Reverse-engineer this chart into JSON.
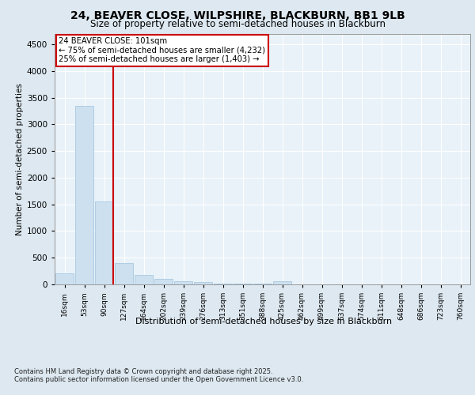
{
  "title_line1": "24, BEAVER CLOSE, WILPSHIRE, BLACKBURN, BB1 9LB",
  "title_line2": "Size of property relative to semi-detached houses in Blackburn",
  "xlabel": "Distribution of semi-detached houses by size in Blackburn",
  "ylabel": "Number of semi-detached properties",
  "categories": [
    "16sqm",
    "53sqm",
    "90sqm",
    "127sqm",
    "164sqm",
    "202sqm",
    "239sqm",
    "276sqm",
    "313sqm",
    "351sqm",
    "388sqm",
    "425sqm",
    "462sqm",
    "499sqm",
    "537sqm",
    "574sqm",
    "611sqm",
    "648sqm",
    "686sqm",
    "723sqm",
    "760sqm"
  ],
  "values": [
    205,
    3350,
    1550,
    400,
    175,
    100,
    65,
    40,
    20,
    15,
    10,
    55,
    5,
    0,
    0,
    0,
    0,
    0,
    0,
    0,
    0
  ],
  "bar_color": "#cce0f0",
  "bar_edge_color": "#a8c8e0",
  "vline_color": "#cc0000",
  "vline_label": "24 BEAVER CLOSE: 101sqm",
  "annotation_line2": "← 75% of semi-detached houses are smaller (4,232)",
  "annotation_line3": "25% of semi-detached houses are larger (1,403) →",
  "ylim": [
    0,
    4700
  ],
  "yticks": [
    0,
    500,
    1000,
    1500,
    2000,
    2500,
    3000,
    3500,
    4000,
    4500
  ],
  "bg_color": "#dde8f0",
  "plot_bg_color": "#e8f2f8",
  "grid_color": "#ffffff",
  "footer_line1": "Contains HM Land Registry data © Crown copyright and database right 2025.",
  "footer_line2": "Contains public sector information licensed under the Open Government Licence v3.0."
}
